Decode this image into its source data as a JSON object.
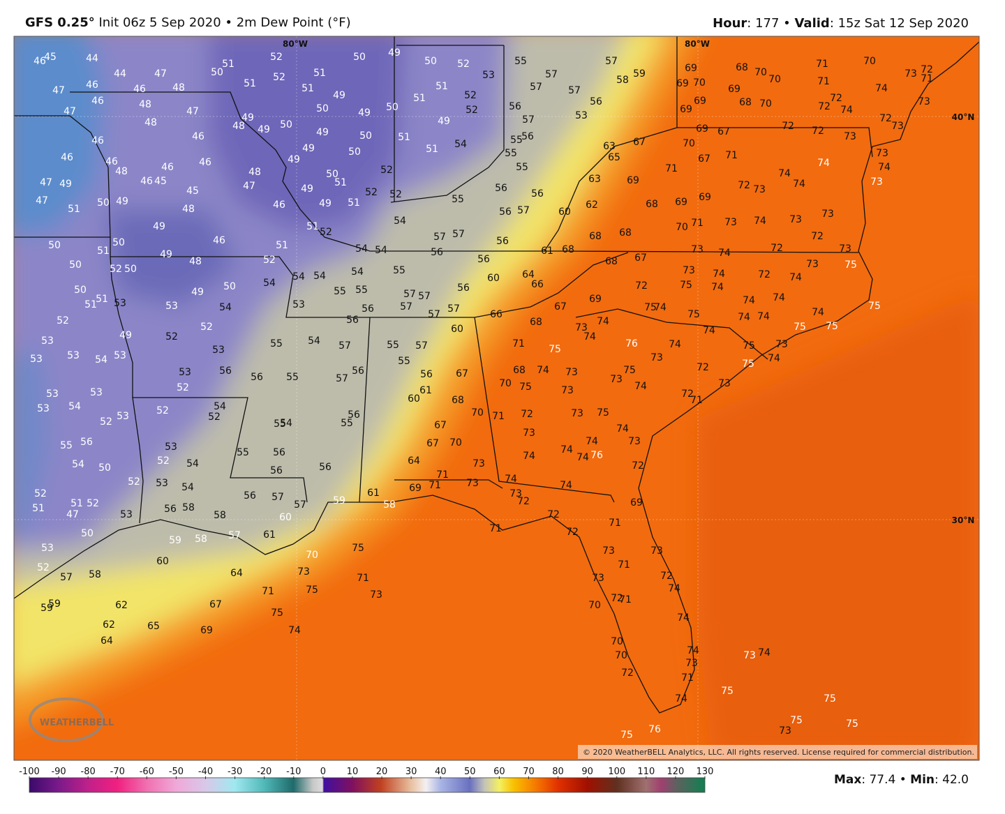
{
  "header": {
    "model": "GFS 0.25°",
    "init": " Init 06z 5 Sep 2020 • 2m Dew Point (°F)",
    "hour_label": "Hour",
    "hour_value": ": 177 • ",
    "valid_label": "Valid",
    "valid_value": ": 15z Sat 12 Sep 2020"
  },
  "map": {
    "lon_labels": [
      "80°W",
      "80°W"
    ],
    "lat_labels": [
      "40°N",
      "30°N"
    ],
    "logo": "WEATHERBELL",
    "copyright": "© 2020 WeatherBELL Analytics, LLC. All rights reserved. License required for commercial distribution.",
    "dew_points": [
      46,
      45,
      44,
      44,
      47,
      47,
      46,
      46,
      48,
      46,
      48,
      47,
      48,
      47,
      46,
      46,
      46,
      46,
      48,
      46,
      46,
      47,
      49,
      46,
      45,
      45,
      47,
      51,
      50,
      49,
      48,
      49,
      50,
      51,
      50,
      50,
      52,
      50,
      49,
      48,
      46,
      50,
      51,
      51,
      53,
      52,
      53,
      49,
      53,
      53,
      54,
      53,
      53,
      53,
      53,
      54,
      52,
      53,
      55,
      56,
      54,
      50,
      52,
      52,
      51,
      51,
      52,
      47,
      50,
      53,
      52,
      57,
      58,
      59,
      59,
      51,
      50,
      52,
      52,
      51,
      51,
      51,
      50,
      49,
      50,
      52,
      53,
      51,
      52,
      52,
      51,
      49,
      50,
      49,
      50,
      49,
      49,
      50,
      48,
      49,
      50,
      51,
      49,
      50,
      49,
      49,
      51,
      54,
      50,
      51,
      52,
      52,
      48,
      47,
      49,
      49,
      51,
      46,
      51,
      51,
      52,
      52,
      54,
      50,
      49,
      53,
      54,
      52,
      52,
      53,
      53,
      52,
      56,
      52,
      54,
      52,
      53,
      52,
      54,
      53,
      54,
      53,
      56,
      58,
      58,
      58,
      59,
      60,
      57,
      52,
      55,
      54,
      57,
      57,
      56,
      56,
      54,
      54,
      54,
      55,
      54,
      54,
      55,
      55,
      57,
      57,
      57,
      57,
      57,
      56,
      56,
      60,
      56,
      56,
      53,
      55,
      54,
      57,
      55,
      57,
      55,
      56,
      55,
      57,
      56,
      56,
      67,
      61,
      60,
      68,
      60,
      55,
      54,
      55,
      56,
      67,
      67,
      70,
      70,
      71,
      55,
      56,
      56,
      56,
      64,
      56,
      57,
      57,
      60,
      61,
      59,
      61,
      58,
      55,
      57,
      57,
      57,
      56,
      56,
      57,
      53,
      57,
      58,
      59,
      55,
      56,
      55,
      55,
      56,
      56,
      56,
      57,
      60,
      62,
      63,
      63,
      65,
      67,
      69,
      68,
      68,
      68,
      61,
      68,
      68,
      67,
      64,
      66,
      66,
      67,
      69,
      68,
      69,
      70,
      69,
      68,
      70,
      70,
      71,
      70,
      71,
      69,
      68,
      70,
      69,
      69,
      74,
      72,
      72,
      74,
      73,
      72,
      71,
      73,
      73,
      72,
      69,
      67,
      70,
      67,
      71,
      71,
      72,
      72,
      73,
      73,
      74,
      74,
      72,
      73,
      74,
      74,
      73,
      69,
      69,
      70,
      71,
      73,
      74,
      73,
      73,
      72,
      73,
      74,
      72,
      73,
      73,
      74,
      72,
      74,
      73,
      75,
      72,
      75,
      74,
      74,
      74,
      74,
      74,
      74,
      75,
      75,
      74,
      75,
      74,
      73,
      74,
      75,
      75,
      76,
      74,
      73,
      74,
      75,
      73,
      75,
      74,
      72,
      72,
      73,
      71,
      75,
      73,
      74,
      71,
      75,
      68,
      74,
      73,
      70,
      75,
      73,
      72,
      73,
      75,
      73,
      74,
      73,
      74,
      74,
      74,
      76,
      74,
      72,
      73,
      71,
      71,
      69,
      73,
      74,
      74,
      73,
      72,
      69,
      72,
      71,
      72,
      71,
      73,
      73,
      71,
      72,
      74,
      73,
      72,
      71,
      70,
      70,
      70,
      72,
      74,
      74,
      73,
      71,
      74,
      76,
      75,
      73,
      74,
      75,
      75,
      75,
      73,
      75,
      70,
      75,
      73,
      71,
      75,
      73,
      64,
      71,
      75,
      74,
      67,
      69,
      62,
      62,
      65,
      64
    ]
  },
  "colorbar": {
    "lim": [
      -100,
      130
    ],
    "ticks": [
      -100,
      -90,
      -80,
      -70,
      -60,
      -50,
      -40,
      -30,
      -20,
      -10,
      0,
      10,
      20,
      30,
      40,
      50,
      60,
      70,
      80,
      90,
      100,
      110,
      120,
      130
    ]
  },
  "stats": {
    "max_label": "Max",
    "max_value": ": 77.4 • ",
    "min_label": "Min",
    "min_value": ": 42.0"
  }
}
